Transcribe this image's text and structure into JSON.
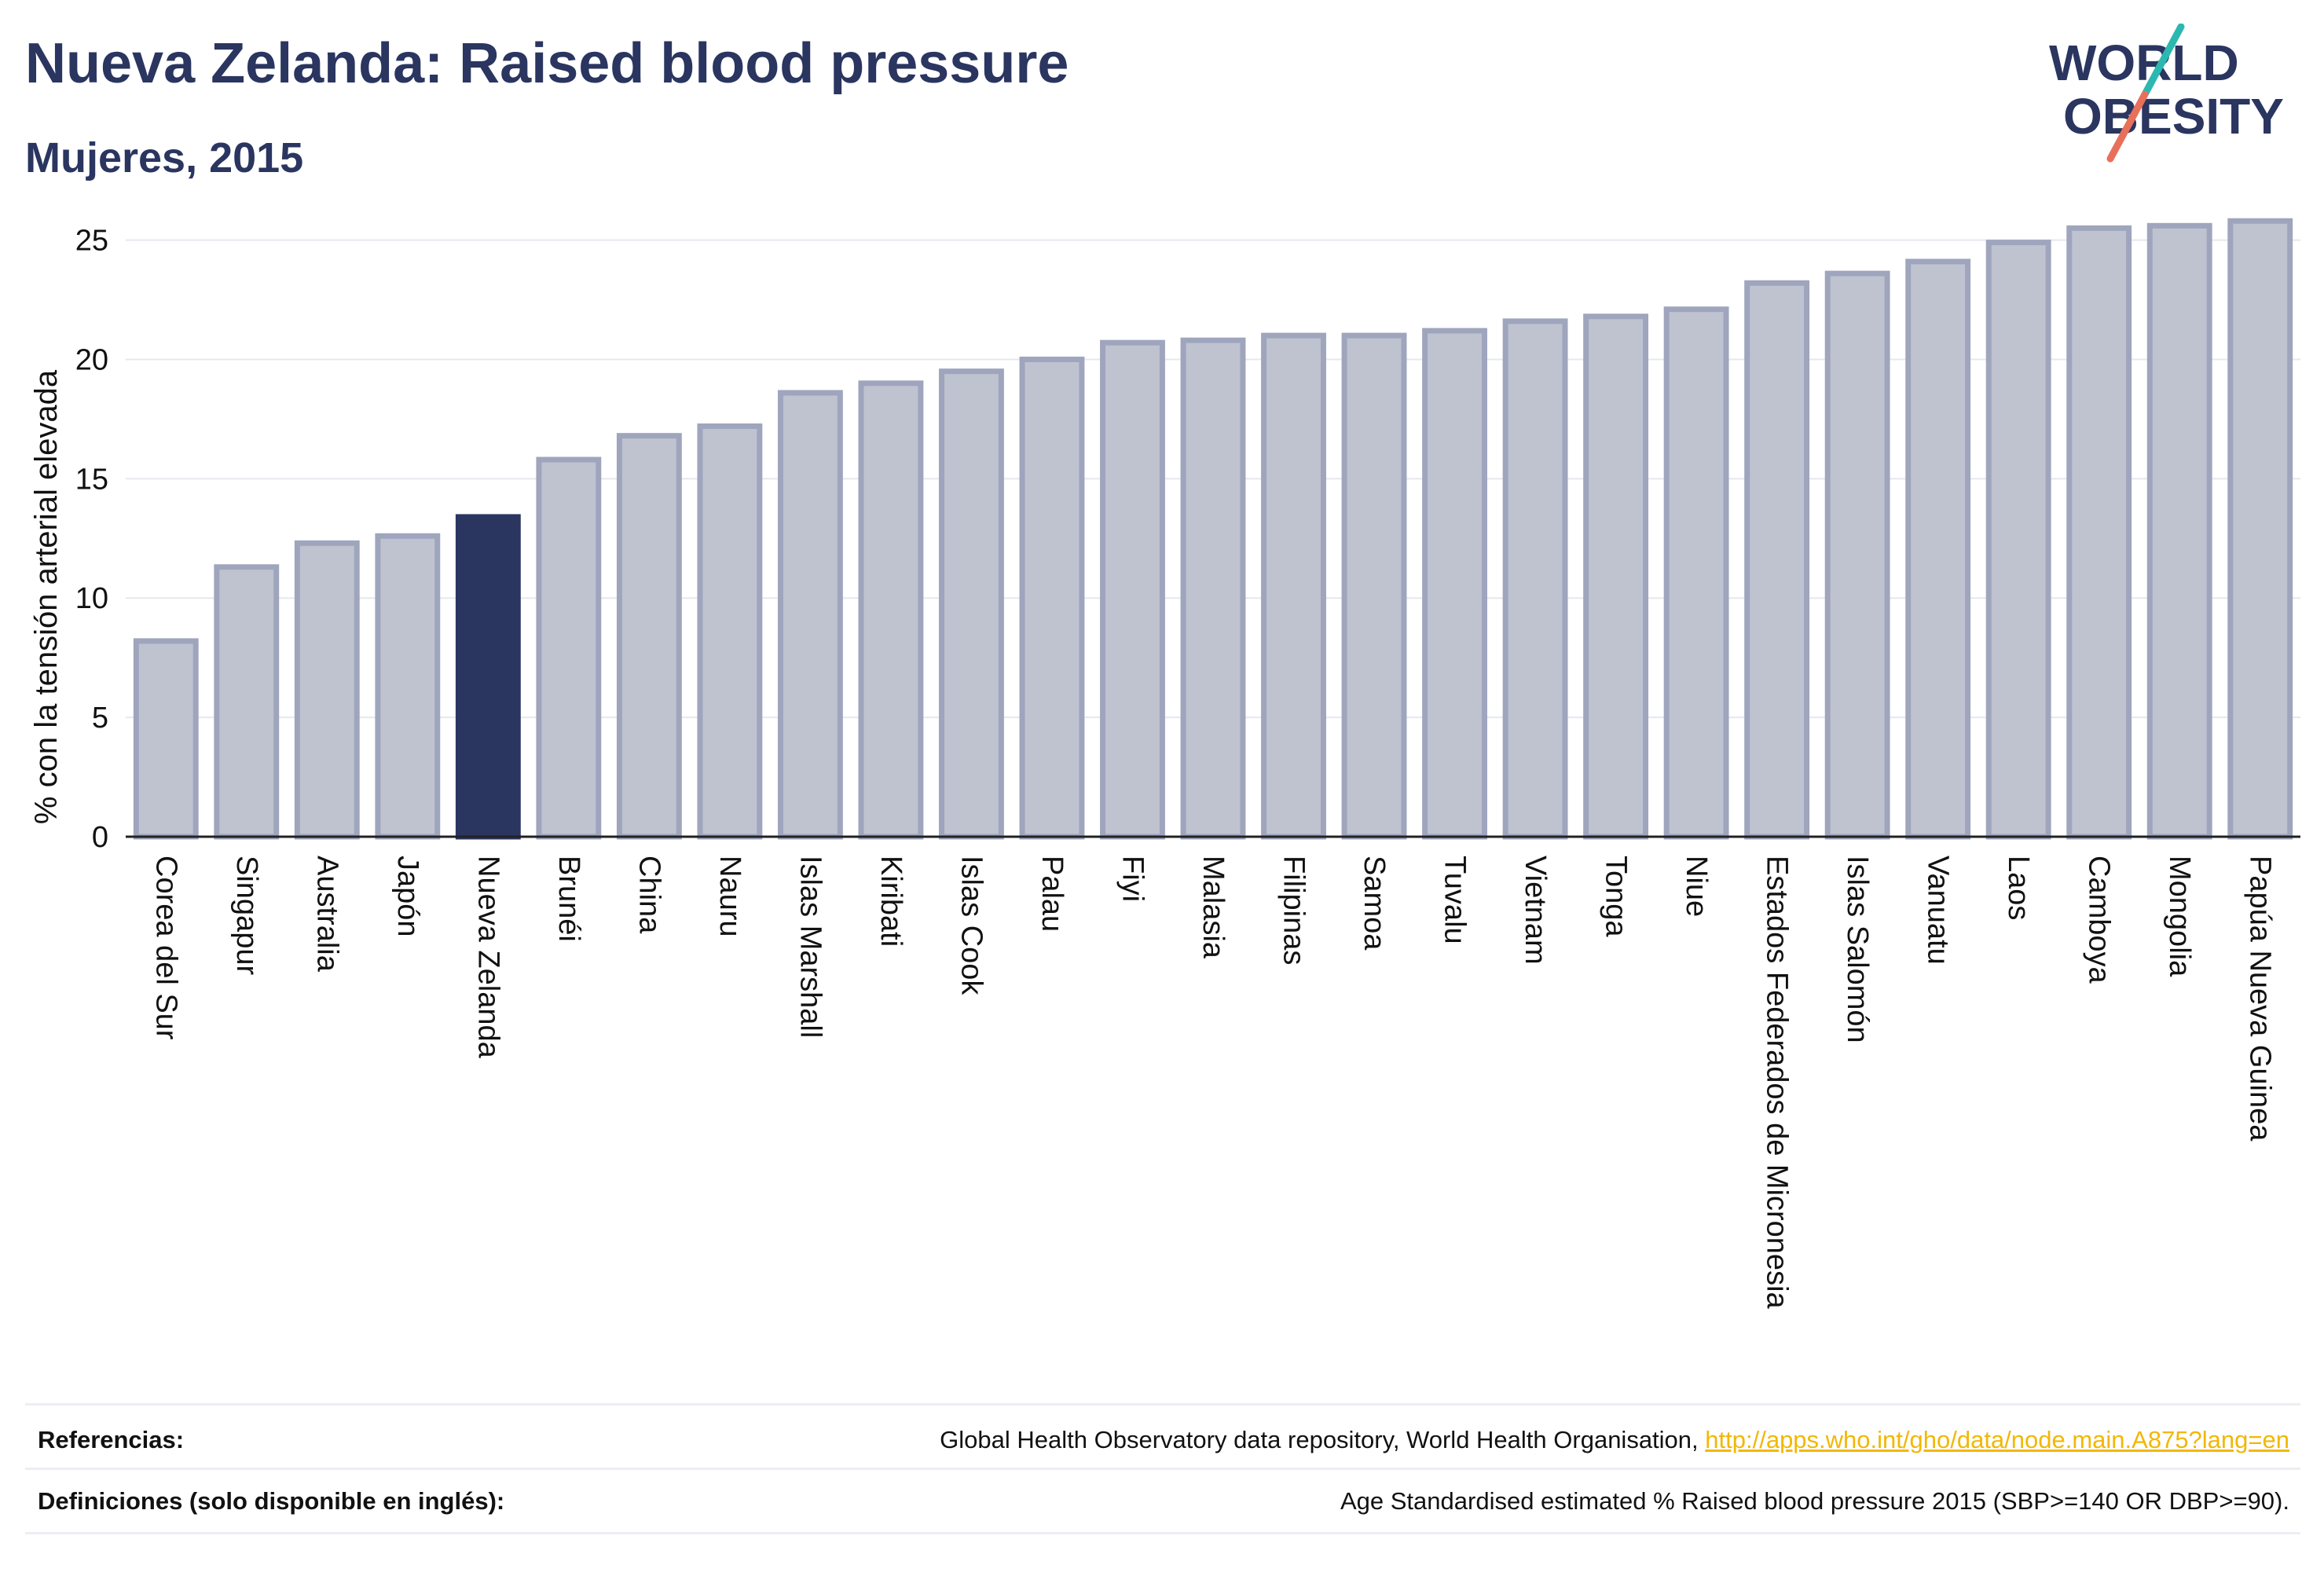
{
  "header": {
    "title": "Nueva Zelanda: Raised blood pressure",
    "subtitle": "Mujeres, 2015"
  },
  "logo": {
    "line1": "WORLD",
    "line2": "OBESITY",
    "accent_teal": "#2bb8b0",
    "accent_coral": "#e8705a"
  },
  "colors": {
    "bar_default": "#bfc3d0",
    "bar_default_stroke": "#9fa5bd",
    "bar_highlight": "#2a3560",
    "text_dark": "#2a3560",
    "link": "#f2b705"
  },
  "chart_data": {
    "type": "bar",
    "title": "Nueva Zelanda: Raised blood pressure",
    "subtitle": "Mujeres, 2015",
    "xlabel": "",
    "ylabel": "% con la tensión arterial elevada",
    "ylim": [
      0,
      26.5
    ],
    "yticks": [
      0,
      5,
      10,
      15,
      20,
      25
    ],
    "grid": true,
    "highlight": "Nueva Zelanda",
    "categories": [
      "Corea del Sur",
      "Singapur",
      "Australia",
      "Japón",
      "Nueva Zelanda",
      "Brunéi",
      "China",
      "Nauru",
      "Islas Marshall",
      "Kiribati",
      "Islas Cook",
      "Palau",
      "Fiyi",
      "Malasia",
      "Filipinas",
      "Samoa",
      "Tuvalu",
      "Vietnam",
      "Tonga",
      "Niue",
      "Estados Federados de Micronesia",
      "Islas Salomón",
      "Vanuatu",
      "Laos",
      "Camboya",
      "Mongolia",
      "Papúa Nueva Guinea"
    ],
    "values": [
      8.2,
      11.3,
      12.3,
      12.6,
      13.4,
      15.8,
      16.8,
      17.2,
      18.6,
      19.0,
      19.5,
      20.0,
      20.7,
      20.8,
      21.0,
      21.0,
      21.2,
      21.6,
      21.8,
      22.1,
      23.2,
      23.6,
      24.1,
      24.9,
      25.5,
      25.6,
      25.8
    ]
  },
  "footer": {
    "references_label": "Referencias:",
    "references_text": "Global Health Observatory data repository, World Health Organisation,",
    "references_link": "http://apps.who.int/gho/data/node.main.A875?lang=en",
    "definitions_label": "Definiciones (solo disponible en inglés):",
    "definitions_text": "Age Standardised estimated % Raised blood pressure 2015 (SBP>=140 OR DBP>=90)."
  }
}
